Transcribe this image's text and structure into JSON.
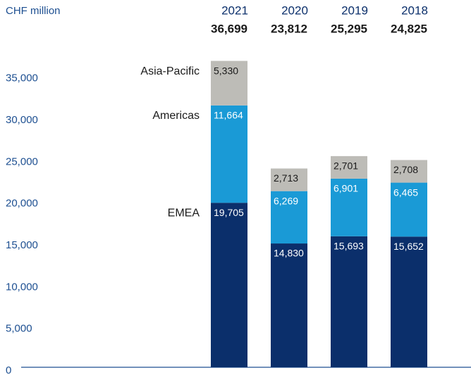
{
  "chart_data": {
    "type": "stacked_bar",
    "unit_label": "CHF million",
    "categories": [
      "2021",
      "2020",
      "2019",
      "2018"
    ],
    "totals": {
      "values": [
        36699,
        23812,
        25295,
        24825
      ],
      "value_labels": [
        "36,699",
        "23,812",
        "25,295",
        "24,825"
      ]
    },
    "series": [
      {
        "name": "EMEA",
        "color": "#0b2f6b",
        "values": [
          19705,
          14830,
          15693,
          15652
        ],
        "value_labels": [
          "19,705",
          "14,830",
          "15,693",
          "15,652"
        ]
      },
      {
        "name": "Americas",
        "color": "#1a9ad6",
        "values": [
          11664,
          6269,
          6901,
          6465
        ],
        "value_labels": [
          "11,664",
          "6,269",
          "6,901",
          "6,465"
        ]
      },
      {
        "name": "Asia-Pacific",
        "color": "#bdbcb7",
        "values": [
          5330,
          2713,
          2701,
          2708
        ],
        "value_labels": [
          "5,330",
          "2,713",
          "2,701",
          "2,708"
        ]
      }
    ],
    "ylim": [
      0,
      37000
    ],
    "yticks": [
      0,
      {
        "value": 5000,
        "label": "5,000"
      },
      {
        "value": 10000,
        "label": "10,000"
      },
      {
        "value": 15000,
        "label": "15,000"
      },
      {
        "value": 20000,
        "label": "20,000"
      },
      {
        "value": 25000,
        "label": "25,000"
      },
      {
        "value": 30000,
        "label": "30,000"
      },
      {
        "value": 35000,
        "label": "35,000"
      }
    ],
    "grid": false
  }
}
